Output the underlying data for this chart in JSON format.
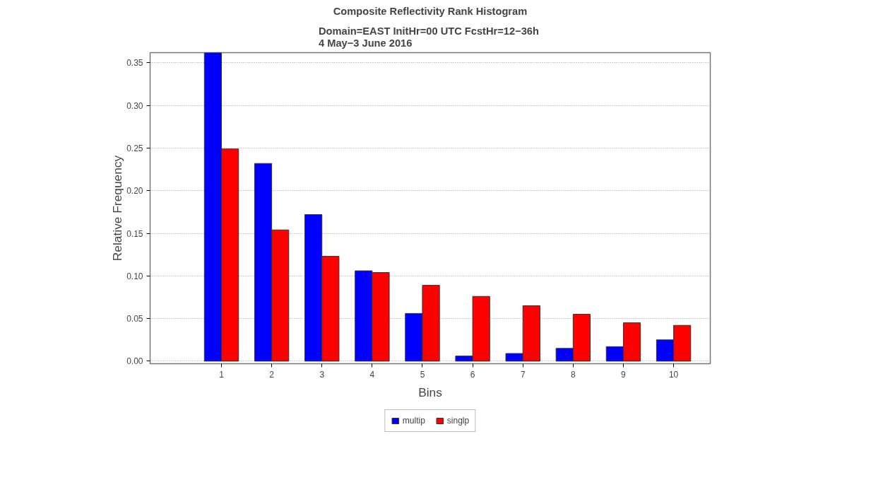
{
  "chart_data": {
    "type": "bar",
    "title": "Composite Reflectivity Rank Histogram",
    "subtitle": "Domain=EAST  InitHr=00 UTC FcstHr=12−36h\n4 May−3 June 2016",
    "xlabel": "Bins",
    "ylabel": "Relative Frequency",
    "categories": [
      "1",
      "2",
      "3",
      "4",
      "5",
      "6",
      "7",
      "8",
      "9",
      "10"
    ],
    "series": [
      {
        "name": "multip",
        "color": "#0000ff",
        "values": [
          0.362,
          0.232,
          0.172,
          0.106,
          0.056,
          0.006,
          0.009,
          0.015,
          0.017,
          0.025
        ]
      },
      {
        "name": "singlp",
        "color": "#ff0000",
        "values": [
          0.249,
          0.154,
          0.123,
          0.104,
          0.089,
          0.076,
          0.065,
          0.055,
          0.045,
          0.042
        ]
      }
    ],
    "ylim": [
      -0.003,
      0.362
    ],
    "yticks": [
      {
        "value": 0,
        "label": "0.00"
      },
      0.05,
      {
        "value": 0.1,
        "label": "0.10"
      },
      0.15,
      {
        "value": 0.2,
        "label": "0.20"
      },
      0.25,
      {
        "value": 0.3,
        "label": "0.30"
      },
      0.35
    ],
    "grid": "y",
    "legend": "bottom"
  }
}
